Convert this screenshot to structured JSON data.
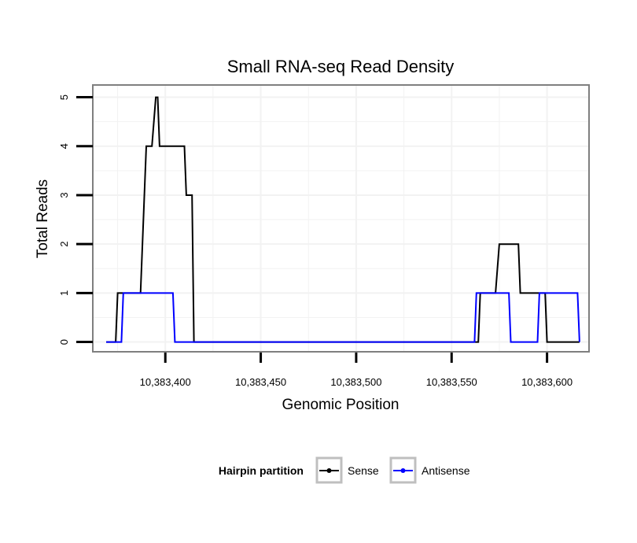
{
  "chart_data": {
    "type": "line",
    "title": "Small RNA-seq Read Density",
    "xlabel": "Genomic Position",
    "ylabel": "Total Reads",
    "xlim": [
      10383362,
      10383622
    ],
    "ylim": [
      -0.2,
      5.25
    ],
    "x_ticks": [
      10383400,
      10383450,
      10383500,
      10383550,
      10383600
    ],
    "x_tick_labels": [
      "10,383,400",
      "10,383,450",
      "10,383,500",
      "10,383,550",
      "10,383,600"
    ],
    "y_ticks": [
      0,
      1,
      2,
      3,
      4,
      5
    ],
    "y_tick_labels": [
      "0",
      "1",
      "2",
      "3",
      "4",
      "5"
    ],
    "grid": true,
    "legend": {
      "title": "Hairpin partition",
      "position": "bottom",
      "entries": [
        "Sense",
        "Antisense"
      ]
    },
    "series": [
      {
        "name": "Sense",
        "color": "#000000",
        "x": [
          10383369,
          10383374,
          10383375,
          10383387,
          10383390,
          10383393,
          10383395,
          10383396,
          10383397,
          10383398,
          10383410,
          10383411,
          10383414,
          10383415,
          10383564,
          10383565,
          10383573,
          10383575,
          10383585,
          10383586,
          10383599,
          10383600,
          10383617
        ],
        "values": [
          0,
          0,
          1,
          1,
          4,
          4,
          5,
          5,
          4,
          4,
          4,
          3,
          3,
          0,
          0,
          1,
          1,
          2,
          2,
          1,
          1,
          0,
          0
        ]
      },
      {
        "name": "Antisense",
        "color": "#0000ff",
        "x": [
          10383369,
          10383377,
          10383378,
          10383404,
          10383405,
          10383416,
          10383562,
          10383563,
          10383580,
          10383581,
          10383595,
          10383596,
          10383616,
          10383617
        ],
        "values": [
          0,
          0,
          1,
          1,
          0,
          0,
          0,
          1,
          1,
          0,
          0,
          1,
          1,
          0
        ]
      }
    ]
  }
}
